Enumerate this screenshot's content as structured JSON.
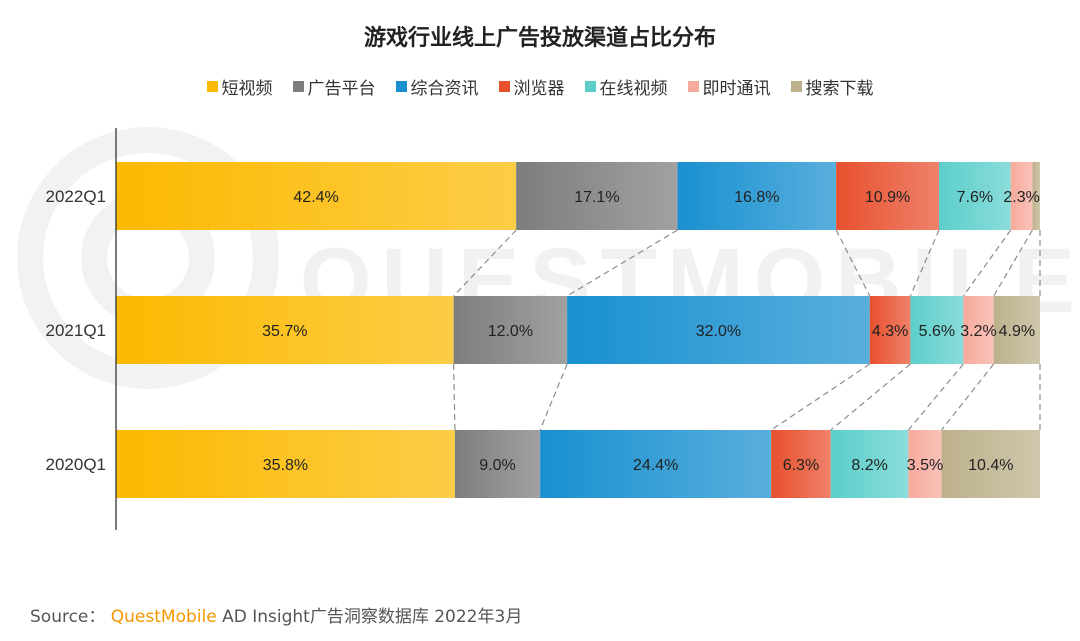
{
  "chart_data": {
    "type": "bar",
    "orientation": "horizontal",
    "stacked": true,
    "normalized_percent": true,
    "title": "游戏行业线上广告投放渠道占比分布",
    "categories": [
      "2022Q1",
      "2021Q1",
      "2020Q1"
    ],
    "series": [
      {
        "name": "短视频",
        "color": "#fbb900",
        "values": [
          42.4,
          35.7,
          35.8
        ],
        "labels": [
          "42.4%",
          "35.7%",
          "35.8%"
        ]
      },
      {
        "name": "广告平台",
        "color": "#7d7d7d",
        "values": [
          17.1,
          12.0,
          9.0
        ],
        "labels": [
          "17.1%",
          "12.0%",
          "9.0%"
        ]
      },
      {
        "name": "综合资讯",
        "color": "#1890d0",
        "values": [
          16.8,
          32.0,
          24.4
        ],
        "labels": [
          "16.8%",
          "32.0%",
          "24.4%"
        ]
      },
      {
        "name": "浏览器",
        "color": "#e8502e",
        "values": [
          10.9,
          4.3,
          6.3
        ],
        "labels": [
          "10.9%",
          "4.3%",
          "6.3%"
        ]
      },
      {
        "name": "在线视频",
        "color": "#5ccfcb",
        "values": [
          7.6,
          5.6,
          8.2
        ],
        "labels": [
          "7.6%",
          "5.6%",
          "8.2%"
        ]
      },
      {
        "name": "即时通讯",
        "color": "#f6aa9c",
        "values": [
          2.3,
          3.2,
          3.5
        ],
        "labels": [
          "2.3%",
          "3.2%",
          "3.5%"
        ]
      },
      {
        "name": "搜索下载",
        "color": "#bdb18c",
        "values": [
          0.8,
          4.9,
          10.4
        ],
        "labels": [
          "",
          "4.9%",
          "10.4%"
        ]
      }
    ],
    "legend_position": "top-center",
    "connector_lines": true,
    "grid": false
  },
  "source": {
    "label": "Source：",
    "brand": "QuestMobile",
    "text": "AD Insight广告洞察数据库 2022年3月"
  },
  "watermark": {
    "text": "QUESTMOBILE"
  }
}
